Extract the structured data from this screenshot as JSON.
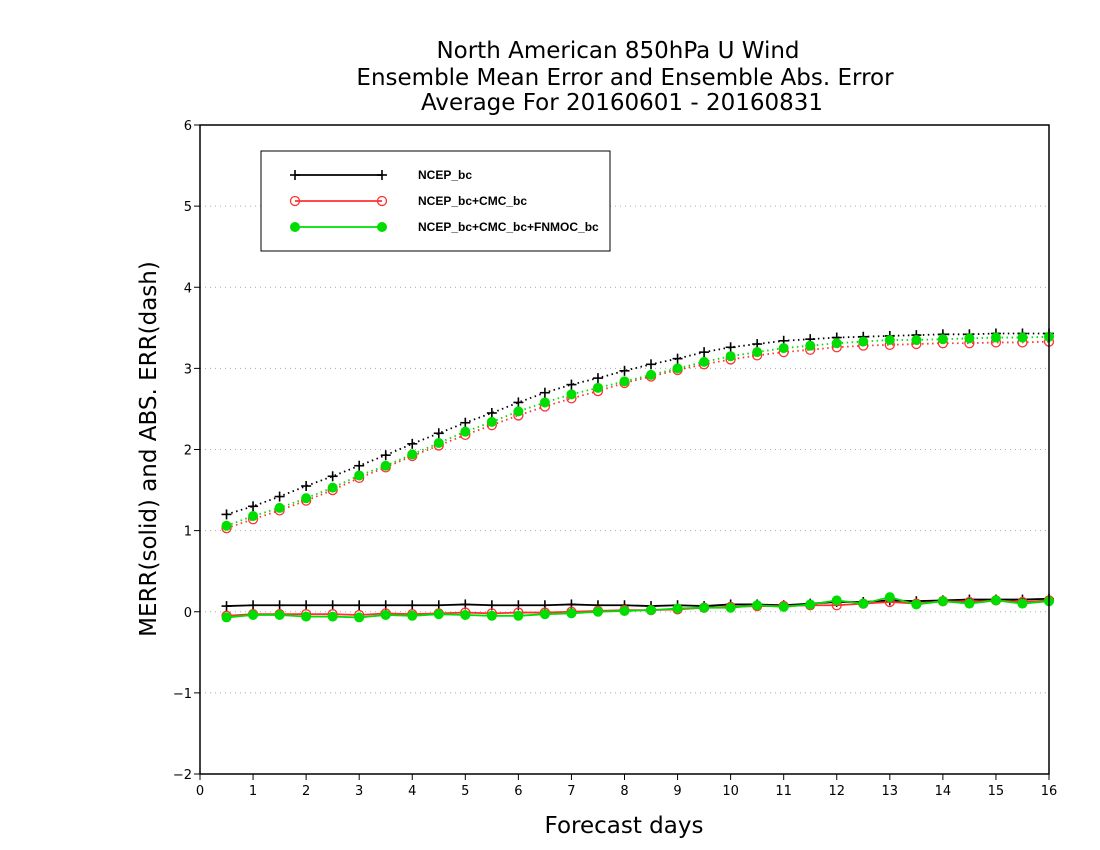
{
  "chart_data": {
    "type": "line",
    "title": [
      "North American 850hPa U Wind",
      "Ensemble Mean Error and Ensemble Abs. Error",
      "Average For 20160601 - 20160831"
    ],
    "xlabel": "Forecast days",
    "ylabel": "MERR(solid) and ABS. ERR(dash)",
    "xlim": [
      0,
      16
    ],
    "ylim": [
      -2,
      6
    ],
    "xticks": [
      0,
      1,
      2,
      3,
      4,
      5,
      6,
      7,
      8,
      9,
      10,
      11,
      12,
      13,
      14,
      15,
      16
    ],
    "xtick_labels": [
      "0",
      "1",
      "2",
      "3",
      "4",
      "5",
      "6",
      "7",
      "8",
      "9",
      "10",
      "11",
      "12",
      "13",
      "14",
      "15",
      "16"
    ],
    "yticks": [
      -2,
      -1,
      0,
      1,
      2,
      3,
      4,
      5,
      6
    ],
    "ytick_labels": [
      "−2",
      "−1",
      "0",
      "1",
      "2",
      "3",
      "4",
      "5",
      "6"
    ],
    "grid": "horizontal dotted",
    "legend_position": "top-left",
    "x": [
      0.5,
      1,
      1.5,
      2,
      2.5,
      3,
      3.5,
      4,
      4.5,
      5,
      5.5,
      6,
      6.5,
      7,
      7.5,
      8,
      8.5,
      9,
      9.5,
      10,
      10.5,
      11,
      11.5,
      12,
      12.5,
      13,
      13.5,
      14,
      14.5,
      15,
      15.5,
      16
    ],
    "series": [
      {
        "name": "NCEP_bc",
        "color": "#000000",
        "marker": "plus",
        "merr": [
          0.07,
          0.08,
          0.08,
          0.08,
          0.08,
          0.08,
          0.08,
          0.08,
          0.08,
          0.09,
          0.08,
          0.08,
          0.08,
          0.09,
          0.08,
          0.08,
          0.07,
          0.08,
          0.07,
          0.09,
          0.09,
          0.08,
          0.1,
          0.12,
          0.12,
          0.14,
          0.13,
          0.14,
          0.15,
          0.15,
          0.15,
          0.16
        ],
        "abserr": [
          1.2,
          1.3,
          1.42,
          1.55,
          1.67,
          1.8,
          1.93,
          2.07,
          2.2,
          2.33,
          2.45,
          2.58,
          2.7,
          2.8,
          2.88,
          2.97,
          3.05,
          3.12,
          3.2,
          3.26,
          3.3,
          3.34,
          3.36,
          3.38,
          3.39,
          3.4,
          3.41,
          3.42,
          3.42,
          3.43,
          3.43,
          3.43
        ]
      },
      {
        "name": "NCEP_bc+CMC_bc",
        "color": "#ff3030",
        "marker": "open-circle",
        "merr": [
          -0.05,
          -0.03,
          -0.03,
          -0.03,
          -0.03,
          -0.04,
          -0.02,
          -0.03,
          -0.02,
          -0.01,
          -0.02,
          -0.01,
          -0.01,
          0.0,
          0.01,
          0.02,
          0.02,
          0.03,
          0.05,
          0.06,
          0.07,
          0.07,
          0.08,
          0.08,
          0.1,
          0.12,
          0.1,
          0.13,
          0.12,
          0.14,
          0.12,
          0.14
        ],
        "abserr": [
          1.03,
          1.14,
          1.25,
          1.37,
          1.5,
          1.65,
          1.78,
          1.92,
          2.05,
          2.18,
          2.3,
          2.42,
          2.53,
          2.63,
          2.72,
          2.82,
          2.9,
          2.98,
          3.05,
          3.11,
          3.16,
          3.2,
          3.23,
          3.26,
          3.28,
          3.29,
          3.3,
          3.31,
          3.31,
          3.32,
          3.32,
          3.33
        ]
      },
      {
        "name": "NCEP_bc+CMC_bc+FNMOC_bc",
        "color": "#00dd00",
        "marker": "filled-circle",
        "merr": [
          -0.07,
          -0.04,
          -0.04,
          -0.06,
          -0.06,
          -0.07,
          -0.04,
          -0.05,
          -0.03,
          -0.04,
          -0.05,
          -0.05,
          -0.03,
          -0.02,
          0.0,
          0.01,
          0.02,
          0.04,
          0.05,
          0.05,
          0.08,
          0.06,
          0.09,
          0.14,
          0.1,
          0.18,
          0.09,
          0.13,
          0.1,
          0.14,
          0.1,
          0.13
        ],
        "abserr": [
          1.06,
          1.18,
          1.28,
          1.4,
          1.53,
          1.68,
          1.8,
          1.94,
          2.08,
          2.22,
          2.34,
          2.47,
          2.58,
          2.68,
          2.76,
          2.84,
          2.92,
          3.0,
          3.08,
          3.15,
          3.2,
          3.25,
          3.28,
          3.31,
          3.33,
          3.35,
          3.35,
          3.36,
          3.37,
          3.38,
          3.38,
          3.39
        ]
      }
    ]
  }
}
